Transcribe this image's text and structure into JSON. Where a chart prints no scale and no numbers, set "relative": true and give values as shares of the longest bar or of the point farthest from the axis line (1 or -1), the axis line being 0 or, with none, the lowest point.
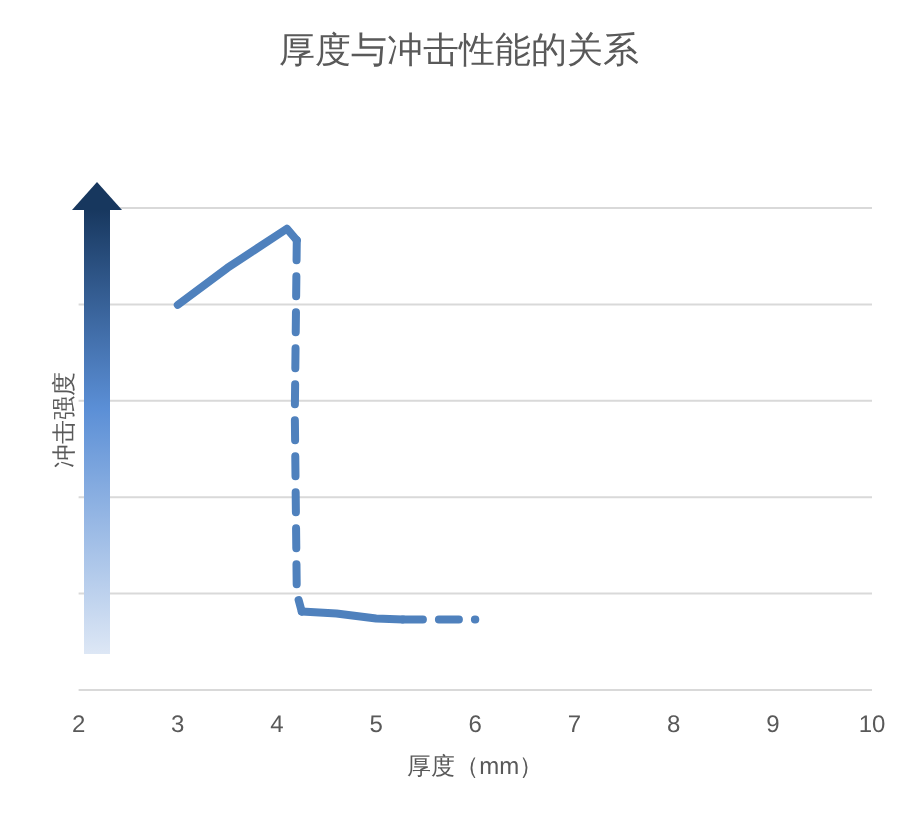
{
  "chart_data": {
    "type": "line",
    "title": "厚度与冲击性能的关系",
    "xlabel": "厚度（mm）",
    "ylabel": "冲击强度",
    "relative": true,
    "xlim": [
      2,
      10
    ],
    "xticks": [
      2,
      3,
      4,
      5,
      6,
      7,
      8,
      9,
      10
    ],
    "grid": "y",
    "series": [
      {
        "color": "#4f81bd",
        "line_style": "solid",
        "x": [
          3,
          3.5,
          4.1,
          4.2
        ],
        "values": [
          0.835,
          0.915,
          1.0,
          0.975
        ]
      },
      {
        "color": "#4f81bd",
        "line_style": "dashed",
        "x": [
          4.2,
          4.18,
          4.2,
          4.25
        ],
        "values": [
          0.975,
          0.6,
          0.21,
          0.17
        ]
      },
      {
        "color": "#4f81bd",
        "line_style": "solid",
        "x": [
          4.25,
          4.6,
          5.0,
          5.27
        ],
        "values": [
          0.17,
          0.166,
          0.155,
          0.153
        ]
      },
      {
        "color": "#4f81bd",
        "line_style": "dashed",
        "x": [
          5.27,
          6.0
        ],
        "values": [
          0.153,
          0.153
        ]
      }
    ]
  }
}
